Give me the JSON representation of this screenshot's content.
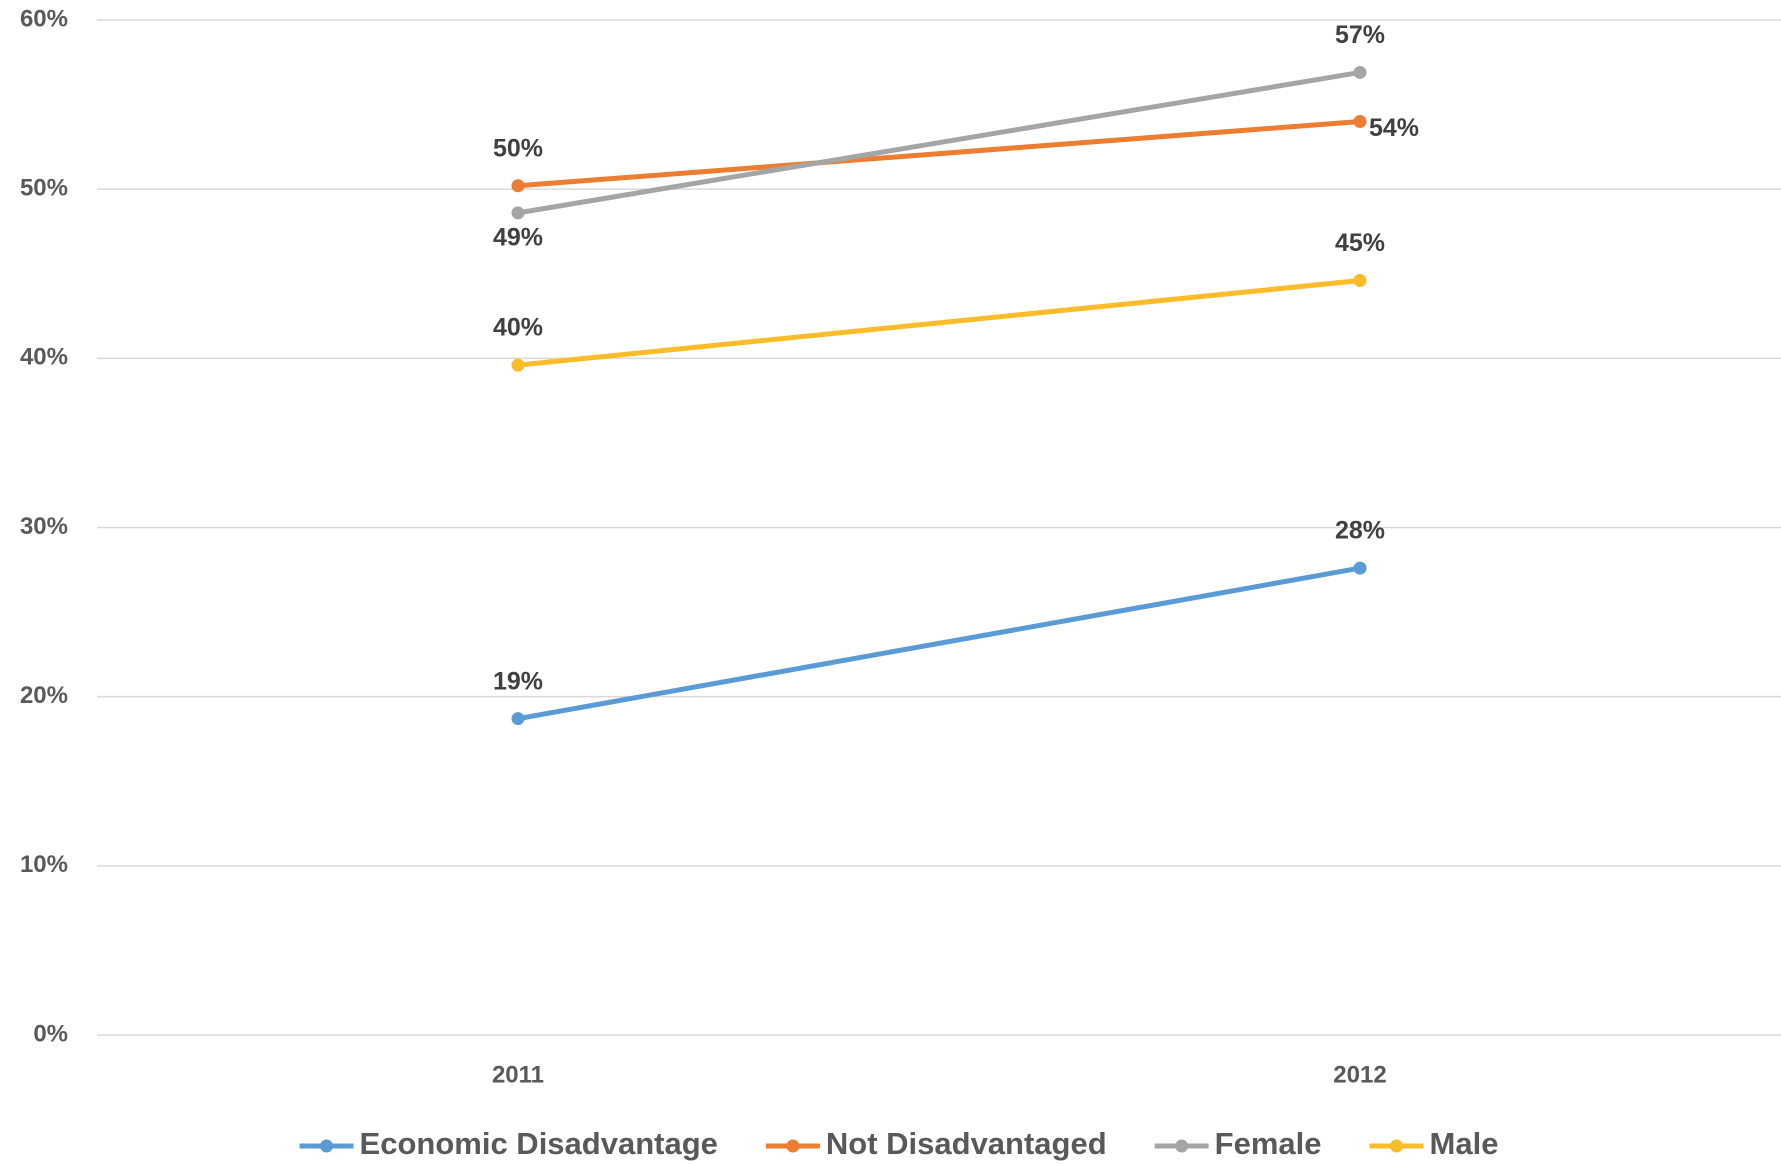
{
  "chart_data": {
    "type": "line",
    "categories": [
      "2011",
      "2012"
    ],
    "series": [
      {
        "name": "Economic Disadvantage",
        "color": "#5b9bd5",
        "values": [
          18.7,
          27.6
        ],
        "value_labels": [
          "19%",
          "28%"
        ]
      },
      {
        "name": "Not Disadvantaged",
        "color": "#ed7d31",
        "values": [
          50.2,
          54.0
        ],
        "value_labels": [
          "50%",
          "54%"
        ]
      },
      {
        "name": "Female",
        "color": "#a5a5a5",
        "values": [
          48.6,
          56.9
        ],
        "value_labels": [
          "49%",
          "57%"
        ]
      },
      {
        "name": "Male",
        "color": "#fbbc2a",
        "values": [
          39.6,
          44.6
        ],
        "value_labels": [
          "40%",
          "45%"
        ]
      }
    ],
    "ylim": [
      0,
      60
    ],
    "yticks": [
      {
        "value": 0,
        "label": "0%"
      },
      {
        "value": 10,
        "label": "10%"
      },
      {
        "value": 20,
        "label": "20%"
      },
      {
        "value": 30,
        "label": "30%"
      },
      {
        "value": 40,
        "label": "40%"
      },
      {
        "value": 50,
        "label": "50%"
      },
      {
        "value": 60,
        "label": "60%"
      }
    ],
    "grid": true,
    "legend": "bottom"
  }
}
